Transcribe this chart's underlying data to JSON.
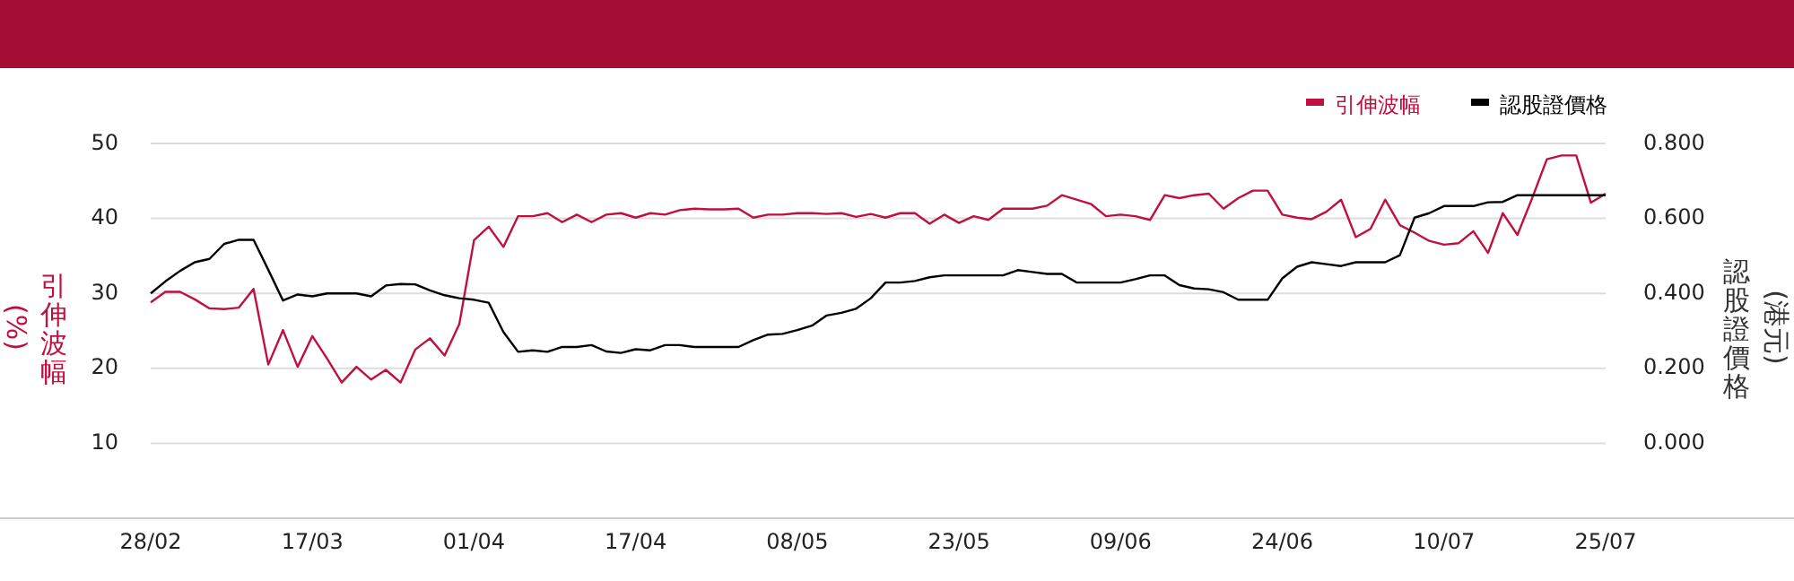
{
  "chart_data": {
    "type": "line",
    "categories": [
      "28/02",
      null,
      null,
      null,
      null,
      null,
      null,
      null,
      null,
      null,
      null,
      "17/03",
      null,
      null,
      null,
      null,
      null,
      null,
      null,
      null,
      null,
      null,
      "01/04",
      null,
      null,
      null,
      null,
      null,
      null,
      null,
      null,
      null,
      null,
      "17/04",
      null,
      null,
      null,
      null,
      null,
      null,
      null,
      null,
      null,
      null,
      "08/05",
      null,
      null,
      null,
      null,
      null,
      null,
      null,
      null,
      null,
      null,
      "23/05",
      null,
      null,
      null,
      null,
      null,
      null,
      null,
      null,
      null,
      null,
      "09/06",
      null,
      null,
      null,
      null,
      null,
      null,
      null,
      null,
      null,
      null,
      "24/06",
      null,
      null,
      null,
      null,
      null,
      null,
      null,
      null,
      null,
      null,
      "10/07",
      null,
      null,
      null,
      null,
      null,
      null,
      null,
      null,
      null,
      null,
      "25/07"
    ],
    "series": [
      {
        "name": "引伸波幅",
        "color": "#c0103f",
        "values": [
          28.8,
          30.2,
          30.2,
          29.2,
          28.0,
          27.9,
          28.1,
          30.6,
          20.5,
          25.1,
          20.2,
          24.3,
          21.3,
          18.1,
          20.2,
          18.5,
          19.8,
          18.1,
          22.5,
          24.0,
          21.7,
          25.9,
          37.1,
          38.9,
          36.2,
          40.3,
          40.3,
          40.7,
          39.5,
          40.5,
          39.5,
          40.5,
          40.7,
          40.1,
          40.7,
          40.5,
          41.1,
          41.3,
          41.2,
          41.2,
          41.3,
          40.1,
          40.5,
          40.5,
          40.7,
          40.7,
          40.6,
          40.7,
          40.2,
          40.6,
          40.1,
          40.7,
          40.7,
          39.3,
          40.5,
          39.4,
          40.3,
          39.8,
          41.3,
          41.3,
          41.3,
          41.7,
          43.1,
          42.5,
          41.9,
          40.3,
          40.5,
          40.3,
          39.8,
          43.1,
          42.7,
          43.1,
          43.3,
          41.3,
          42.7,
          43.7,
          43.7,
          40.5,
          40.1,
          39.9,
          40.9,
          42.5,
          37.5,
          38.6,
          42.5,
          39.1,
          38.1,
          37.0,
          36.5,
          36.7,
          38.3,
          35.4,
          40.7,
          37.8,
          42.7,
          47.9,
          48.4,
          48.4,
          42.1,
          43.3
        ]
      },
      {
        "name": "認股證價格",
        "color": "#000000",
        "axis": "y2",
        "values": [
          0.4,
          0.432,
          0.46,
          0.483,
          0.492,
          0.532,
          0.543,
          0.543,
          0.463,
          0.381,
          0.397,
          0.392,
          0.4,
          0.4,
          0.4,
          0.392,
          0.421,
          0.425,
          0.424,
          0.408,
          0.395,
          0.387,
          0.383,
          0.375,
          0.297,
          0.244,
          0.248,
          0.244,
          0.257,
          0.257,
          0.262,
          0.245,
          0.241,
          0.251,
          0.248,
          0.262,
          0.262,
          0.257,
          0.257,
          0.257,
          0.257,
          0.275,
          0.29,
          0.292,
          0.302,
          0.314,
          0.341,
          0.348,
          0.359,
          0.387,
          0.429,
          0.429,
          0.433,
          0.443,
          0.448,
          0.448,
          0.448,
          0.448,
          0.448,
          0.462,
          0.457,
          0.452,
          0.452,
          0.429,
          0.429,
          0.429,
          0.429,
          0.438,
          0.448,
          0.448,
          0.422,
          0.413,
          0.411,
          0.403,
          0.383,
          0.383,
          0.383,
          0.44,
          0.471,
          0.483,
          0.478,
          0.473,
          0.483,
          0.483,
          0.483,
          0.502,
          0.602,
          0.614,
          0.633,
          0.633,
          0.633,
          0.643,
          0.644,
          0.662,
          0.662,
          0.662,
          0.662,
          0.662,
          0.662,
          0.662
        ]
      }
    ],
    "ylabel": "引伸波幅(%)",
    "y2label": "認股證價格(港元)",
    "ylim": [
      0,
      50
    ],
    "yticks": [
      10,
      20,
      30,
      40,
      50
    ],
    "y2lim": [
      -0.2,
      0.8
    ],
    "y2ticks": [
      {
        "value": 0,
        "label": "0.000"
      },
      {
        "value": 0.2,
        "label": "0.200"
      },
      {
        "value": 0.4,
        "label": "0.400"
      },
      {
        "value": 0.6,
        "label": "0.600"
      },
      {
        "value": 0.8,
        "label": "0.800"
      }
    ],
    "grid": "y",
    "legend": "top right",
    "marker": "none",
    "line_style": "solid"
  }
}
